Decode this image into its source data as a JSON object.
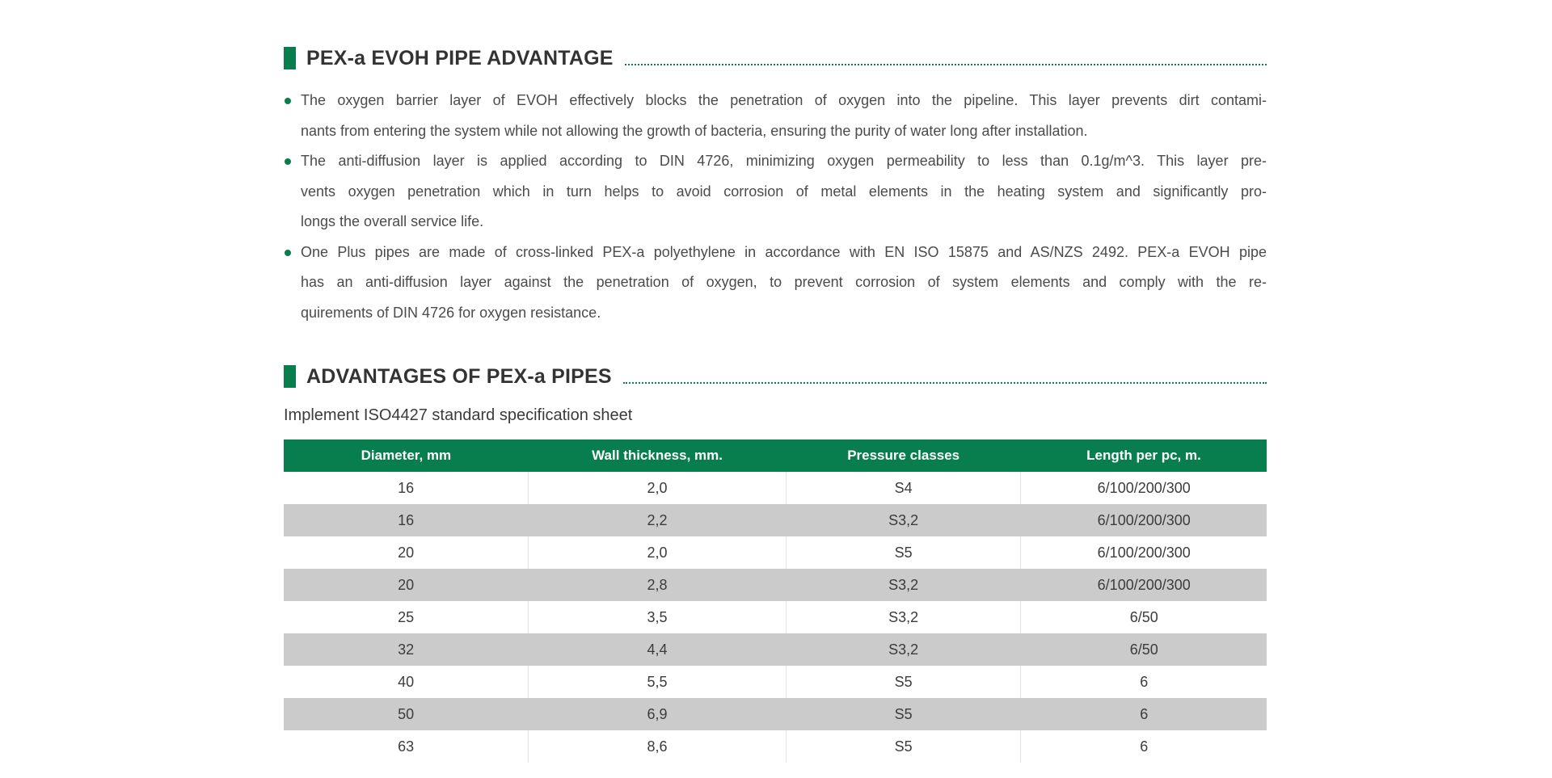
{
  "theme": {
    "accent_green": "#087D4E",
    "row_gray": "#CBCBCB",
    "heading_color": "#333333",
    "body_color": "#4B4B4B",
    "table_header_text": "#FFFFFF"
  },
  "section1": {
    "title": "PEX-a EVOH PIPE ADVANTAGE",
    "bullets": [
      {
        "lines": [
          "The oxygen barrier layer of EVOH effectively blocks the penetration of oxygen into the pipeline. This layer prevents dirt contami-",
          "nants from entering the system while not allowing the growth of bacteria, ensuring the purity of water long after installation."
        ]
      },
      {
        "lines": [
          "The anti-diffusion layer is applied according to DIN 4726, minimizing oxygen permeability to less than 0.1g/m^3. This layer pre-",
          "vents oxygen penetration which in turn helps to avoid corrosion of metal elements in the heating system and significantly pro-",
          "longs the overall service life."
        ]
      },
      {
        "lines": [
          "One Plus pipes are made of cross-linked PEX-a polyethylene in accordance with EN ISO 15875 and AS/NZS 2492. PEX-a EVOH pipe",
          "has an anti-diffusion layer against the penetration of oxygen, to prevent corrosion of system elements and comply with the re-",
          "quirements of DIN 4726 for oxygen resistance."
        ]
      }
    ]
  },
  "section2": {
    "title": "ADVANTAGES OF PEX-a PIPES",
    "subtitle": "Implement ISO4427 standard specification sheet",
    "table": {
      "columns": [
        "Diameter, mm",
        "Wall thickness, mm.",
        "Pressure classes",
        "Length per pc, m."
      ],
      "rows": [
        [
          "16",
          "2,0",
          "S4",
          "6/100/200/300"
        ],
        [
          "16",
          "2,2",
          "S3,2",
          "6/100/200/300"
        ],
        [
          "20",
          "2,0",
          "S5",
          "6/100/200/300"
        ],
        [
          "20",
          "2,8",
          "S3,2",
          "6/100/200/300"
        ],
        [
          "25",
          "3,5",
          "S3,2",
          "6/50"
        ],
        [
          "32",
          "4,4",
          "S3,2",
          "6/50"
        ],
        [
          "40",
          "5,5",
          "S5",
          "6"
        ],
        [
          "50",
          "6,9",
          "S5",
          "6"
        ],
        [
          "63",
          "8,6",
          "S5",
          "6"
        ]
      ]
    }
  }
}
